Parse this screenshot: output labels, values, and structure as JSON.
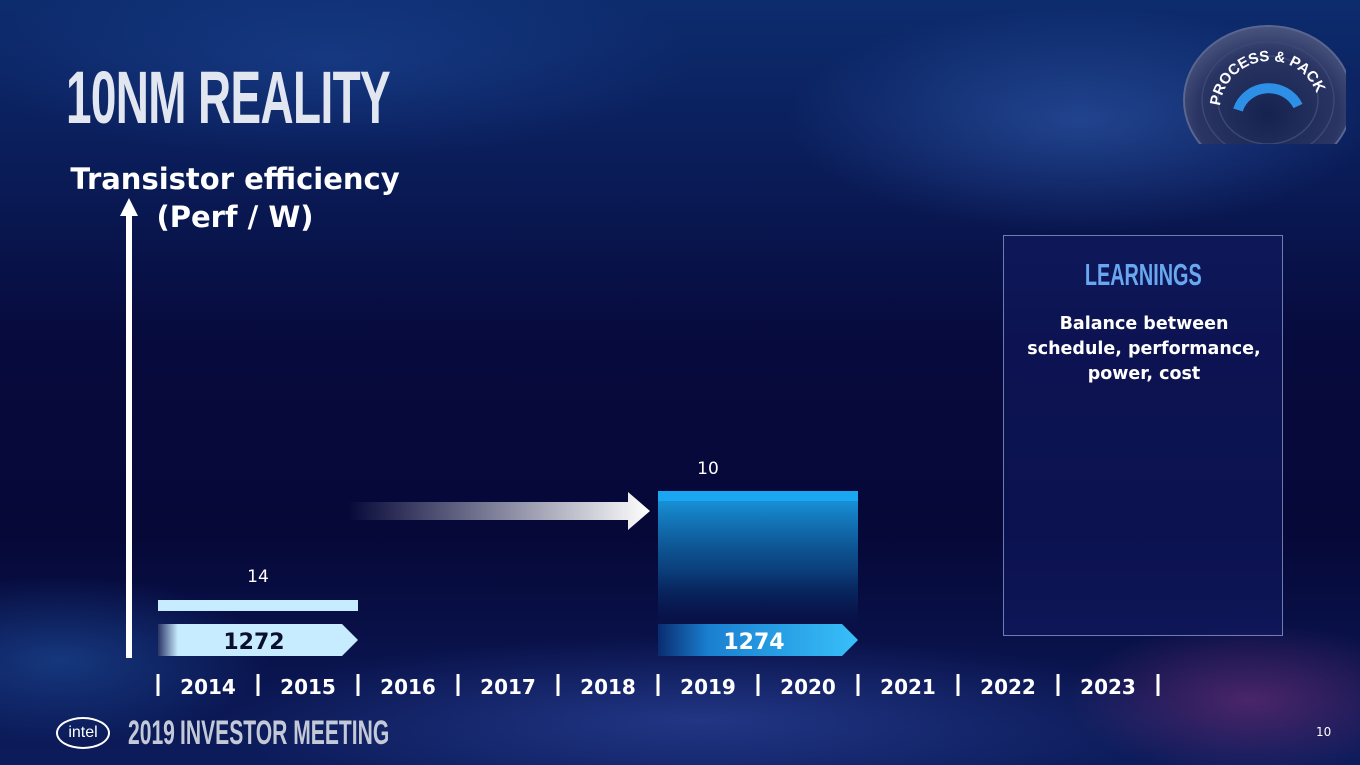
{
  "slide": {
    "title": "10NM REALITY",
    "page_number": "10"
  },
  "chart_data": {
    "type": "bar",
    "ylabel": "Transistor efficiency\n(Perf / W)",
    "x": [
      "2014",
      "2015",
      "2016",
      "2017",
      "2018",
      "2019",
      "2020",
      "2021",
      "2022",
      "2023"
    ],
    "nodes": [
      {
        "node_label": "14",
        "process": "1272",
        "start_year": "2014",
        "end_year": "2015",
        "level": 1
      },
      {
        "node_label": "10",
        "process": "1274",
        "start_year": "2019",
        "end_year": "2020",
        "level": 2
      }
    ],
    "transition": {
      "from": "2016",
      "to": "2018"
    },
    "colors": {
      "node14": "#c8ecff",
      "node10": "#1aa6f0",
      "tag1272": "#c8ecff",
      "tag1274": "#28b4f5"
    }
  },
  "learnings": {
    "title": "LEARNINGS",
    "text": "Balance between schedule, performance, power, cost"
  },
  "badge": {
    "text": "PROCESS & PACKAGING"
  },
  "footer": {
    "logo": "intel",
    "year": "2019",
    "event": "INVESTOR MEETING"
  }
}
